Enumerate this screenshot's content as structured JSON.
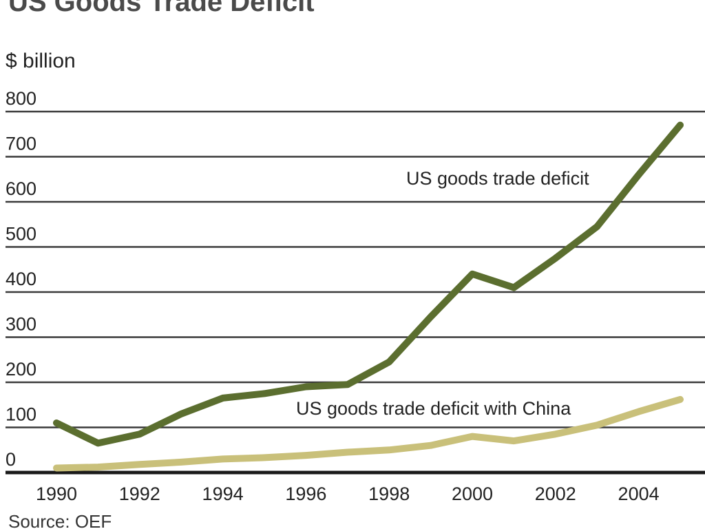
{
  "chart_data": {
    "type": "line",
    "title": "US Goods Trade Deficit",
    "ylabel": "$ billion",
    "xlabel": "",
    "source": "Source: OEF",
    "xlim": [
      1990,
      2005
    ],
    "ylim": [
      0,
      800
    ],
    "grid": true,
    "x_ticks": [
      "1990",
      "1992",
      "1994",
      "1996",
      "1998",
      "2000",
      "2002",
      "2004"
    ],
    "y_ticks": [
      "800",
      "700",
      "600",
      "500",
      "400",
      "300",
      "200",
      "100",
      "0"
    ],
    "x": [
      1990,
      1991,
      1992,
      1993,
      1994,
      1995,
      1996,
      1997,
      1998,
      1999,
      2000,
      2001,
      2002,
      2003,
      2004,
      2005
    ],
    "series": [
      {
        "name": "US goods trade deficit",
        "color": "#5b6e2f",
        "values": [
          110,
          65,
          85,
          130,
          165,
          175,
          190,
          195,
          245,
          345,
          440,
          410,
          475,
          545,
          660,
          770
        ]
      },
      {
        "name": "US goods trade deficit with China",
        "color": "#c9c07a",
        "values": [
          10,
          12,
          18,
          23,
          30,
          33,
          38,
          45,
          50,
          60,
          80,
          70,
          85,
          105,
          135,
          162
        ]
      }
    ],
    "annotations": [
      {
        "text": "US goods trade deficit",
        "series": 0
      },
      {
        "text": "US goods trade deficit with China",
        "series": 1
      }
    ]
  }
}
